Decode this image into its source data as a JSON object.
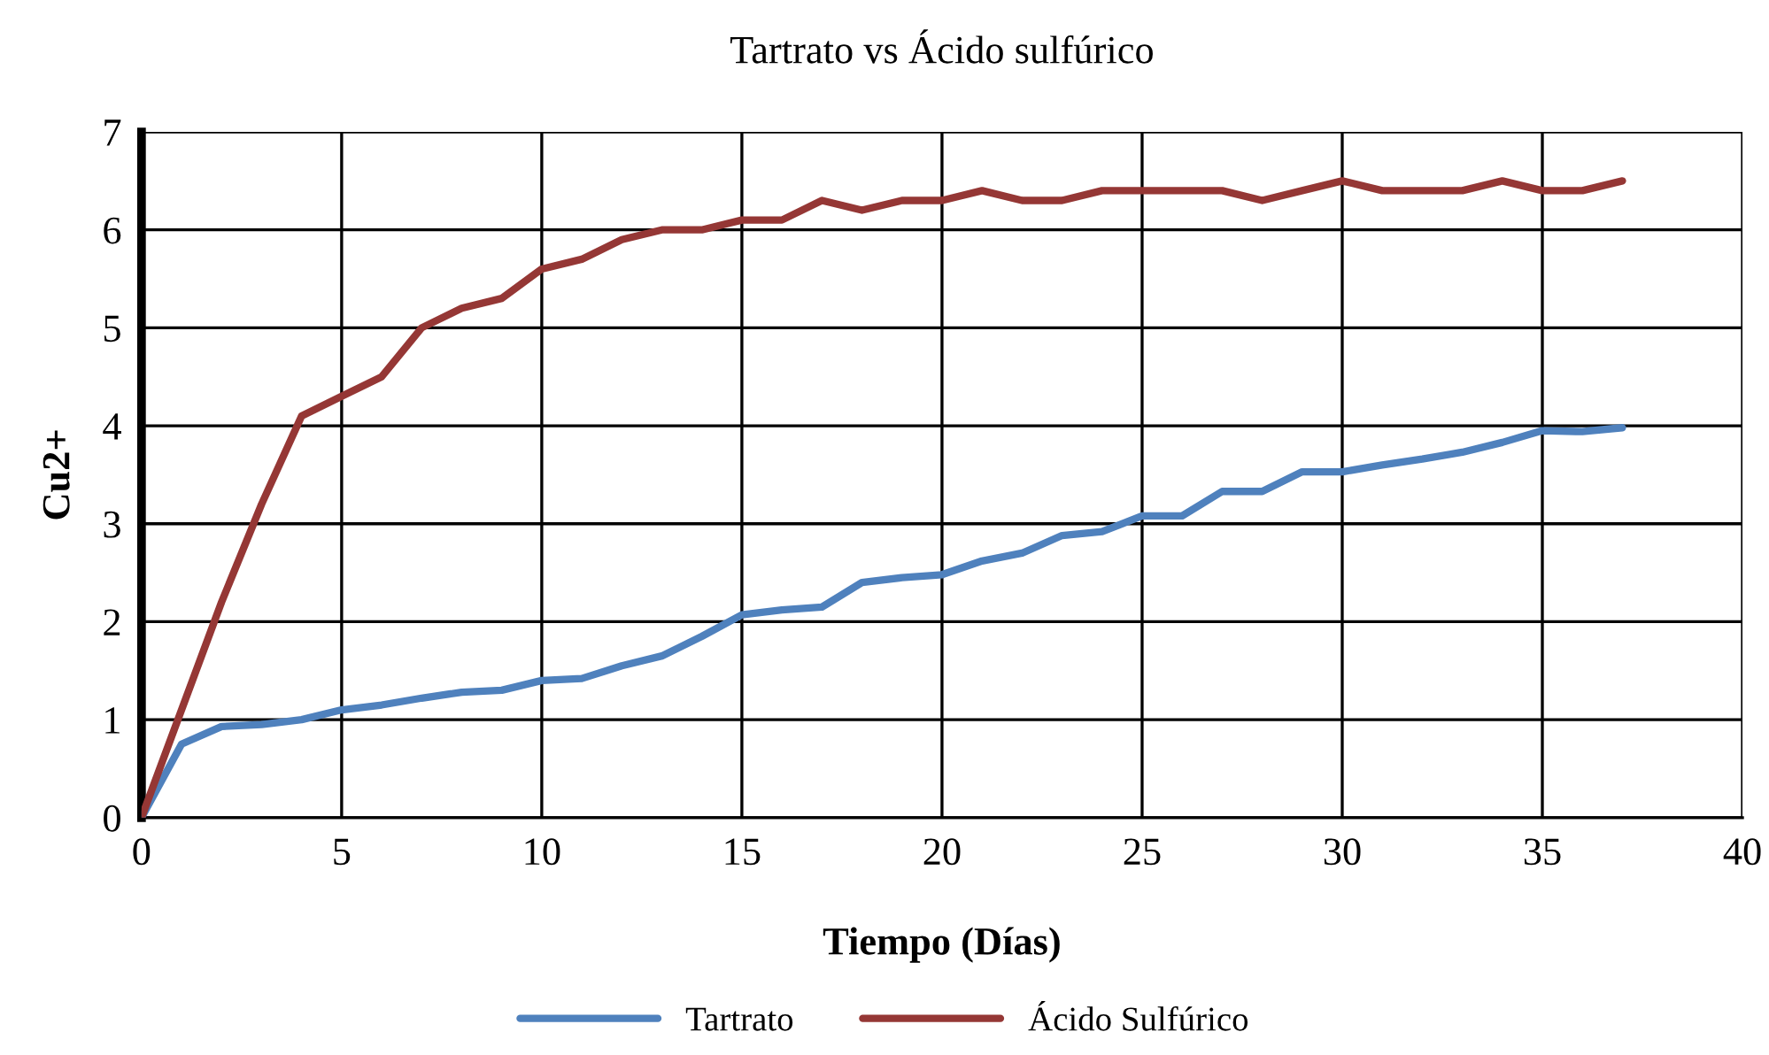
{
  "chart_data": {
    "type": "line",
    "title": "Tartrato vs Ácido sulfúrico",
    "xlabel": "Tiempo (Días)",
    "ylabel": "Cu2+",
    "x": [
      0,
      1,
      2,
      3,
      4,
      5,
      6,
      7,
      8,
      9,
      10,
      11,
      12,
      13,
      14,
      15,
      16,
      17,
      18,
      19,
      20,
      21,
      22,
      23,
      24,
      25,
      26,
      27,
      28,
      29,
      30,
      31,
      32,
      33,
      34,
      35,
      36,
      37
    ],
    "series": [
      {
        "name": "Tartrato",
        "color": "#4f81bd",
        "values": [
          0,
          0.75,
          0.93,
          0.95,
          1.0,
          1.1,
          1.15,
          1.22,
          1.28,
          1.3,
          1.4,
          1.42,
          1.55,
          1.65,
          1.85,
          2.07,
          2.12,
          2.15,
          2.4,
          2.45,
          2.48,
          2.62,
          2.7,
          2.88,
          2.92,
          3.08,
          3.08,
          3.33,
          3.33,
          3.53,
          3.53,
          3.6,
          3.66,
          3.73,
          3.83,
          3.95,
          3.94,
          3.98
        ]
      },
      {
        "name": "Ácido Sulfúrico",
        "color": "#953735",
        "values": [
          0,
          1.1,
          2.2,
          3.2,
          4.1,
          4.3,
          4.5,
          5.0,
          5.2,
          5.3,
          5.6,
          5.7,
          5.9,
          6.0,
          6.0,
          6.1,
          6.1,
          6.3,
          6.2,
          6.3,
          6.3,
          6.4,
          6.3,
          6.3,
          6.4,
          6.4,
          6.4,
          6.4,
          6.3,
          6.4,
          6.5,
          6.4,
          6.4,
          6.4,
          6.5,
          6.4,
          6.4,
          6.5
        ]
      }
    ],
    "xlim": [
      0,
      40
    ],
    "xticks": [
      0,
      5,
      10,
      15,
      20,
      25,
      30,
      35,
      40
    ],
    "ylim": [
      0,
      7
    ],
    "yticks": [
      0,
      1,
      2,
      3,
      4,
      5,
      6,
      7
    ],
    "grid": true,
    "legend": "bottom",
    "marker": "none",
    "line_style": "solid"
  }
}
